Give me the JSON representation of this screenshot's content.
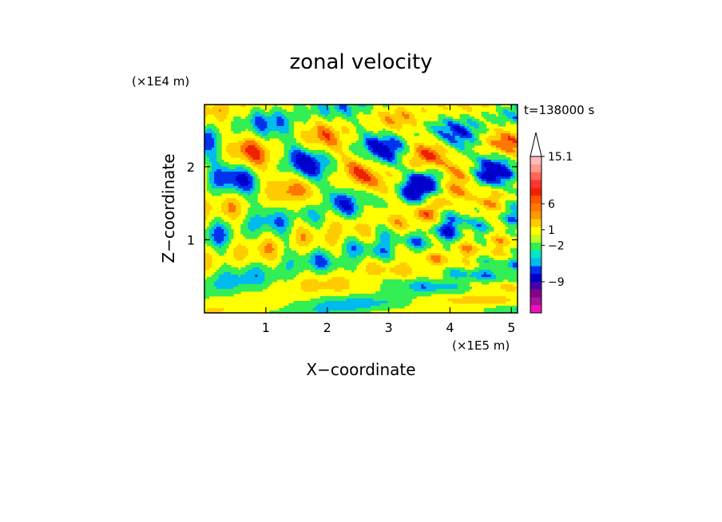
{
  "chart_data": {
    "type": "heatmap",
    "title": "zonal velocity",
    "xlabel": "X−coordinate",
    "ylabel": "Z−coordinate",
    "x_unit": "(×1E5 m)",
    "y_unit": "(×1E4 m)",
    "time_label": "t=138000 s",
    "xlim": [
      0,
      5.1
    ],
    "ylim": [
      0,
      2.85
    ],
    "x_ticks": [
      1,
      2,
      3,
      4,
      5
    ],
    "x_tick_labels": [
      "1",
      "2",
      "3",
      "4",
      "5"
    ],
    "y_ticks": [
      1,
      2
    ],
    "y_tick_labels": [
      "1",
      "2"
    ],
    "colorbar": {
      "level_colors": [
        "#ee11bb",
        "#aa1199",
        "#880088",
        "#4400aa",
        "#0000cc",
        "#0033ee",
        "#00bbee",
        "#00e5cc",
        "#33ee55",
        "#bbff22",
        "#ffff00",
        "#ffcc00",
        "#ff9900",
        "#ff7700",
        "#ff5500",
        "#ee2200",
        "#ff3333",
        "#ff6655",
        "#ff9988",
        "#ffbbbb"
      ],
      "labeled_values": [
        15.1,
        6,
        1,
        -2,
        -9
      ],
      "labels": [
        "15.1",
        "6",
        "1",
        "−2",
        "−9"
      ],
      "extend": "max"
    },
    "z_range": [
      -15,
      15.1
    ],
    "description_of_field": "approximate: x and z axes are spatial coordinates; colour encodes zonal velocity"
  }
}
